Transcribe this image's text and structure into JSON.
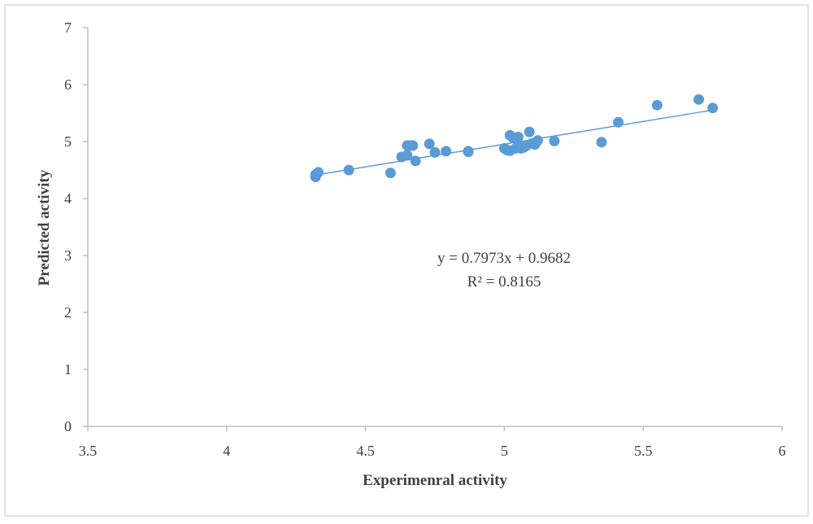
{
  "chart_data": {
    "type": "scatter",
    "title": "",
    "xlabel": "Experimenral activity",
    "ylabel": "Predicted activity",
    "xlim": [
      3.5,
      6
    ],
    "ylim": [
      0,
      7
    ],
    "x_ticks": [
      "3.5",
      "4",
      "4.5",
      "5",
      "5.5",
      "6"
    ],
    "y_ticks": [
      "0",
      "1",
      "2",
      "3",
      "4",
      "5",
      "6",
      "7"
    ],
    "grid": false,
    "legend": "none",
    "colors": {
      "point": "#5b9bd5",
      "trendline": "#5b9bd5",
      "axis": "#bfbfbf",
      "border": "#d9d9d9",
      "text": "#404040"
    },
    "series": [
      {
        "x": [
          4.32,
          4.32,
          4.33,
          4.44,
          4.59,
          4.63,
          4.65,
          4.65,
          4.66,
          4.67,
          4.68,
          4.73,
          4.75,
          4.79,
          4.87,
          4.87,
          5.0,
          5.01,
          5.02,
          5.02,
          5.03,
          5.04,
          5.05,
          5.05,
          5.06,
          5.07,
          5.08,
          5.09,
          5.1,
          5.11,
          5.12,
          5.18,
          5.35,
          5.41,
          5.55,
          5.7,
          5.75
        ],
        "y": [
          4.38,
          4.42,
          4.46,
          4.5,
          4.45,
          4.73,
          4.76,
          4.93,
          4.93,
          4.93,
          4.66,
          4.96,
          4.81,
          4.83,
          4.83,
          4.82,
          4.88,
          4.85,
          5.11,
          4.84,
          5.07,
          4.88,
          4.95,
          5.08,
          4.88,
          4.9,
          4.93,
          5.17,
          4.97,
          4.95,
          5.02,
          5.01,
          4.99,
          5.34,
          5.64,
          5.74,
          5.59
        ]
      }
    ],
    "trendline": {
      "slope": 0.7973,
      "intercept": 0.9682,
      "x_range": [
        4.32,
        5.75
      ],
      "equation_label": "y = 0.7973x + 0.9682",
      "r2_label": "R² = 0.8165"
    }
  }
}
